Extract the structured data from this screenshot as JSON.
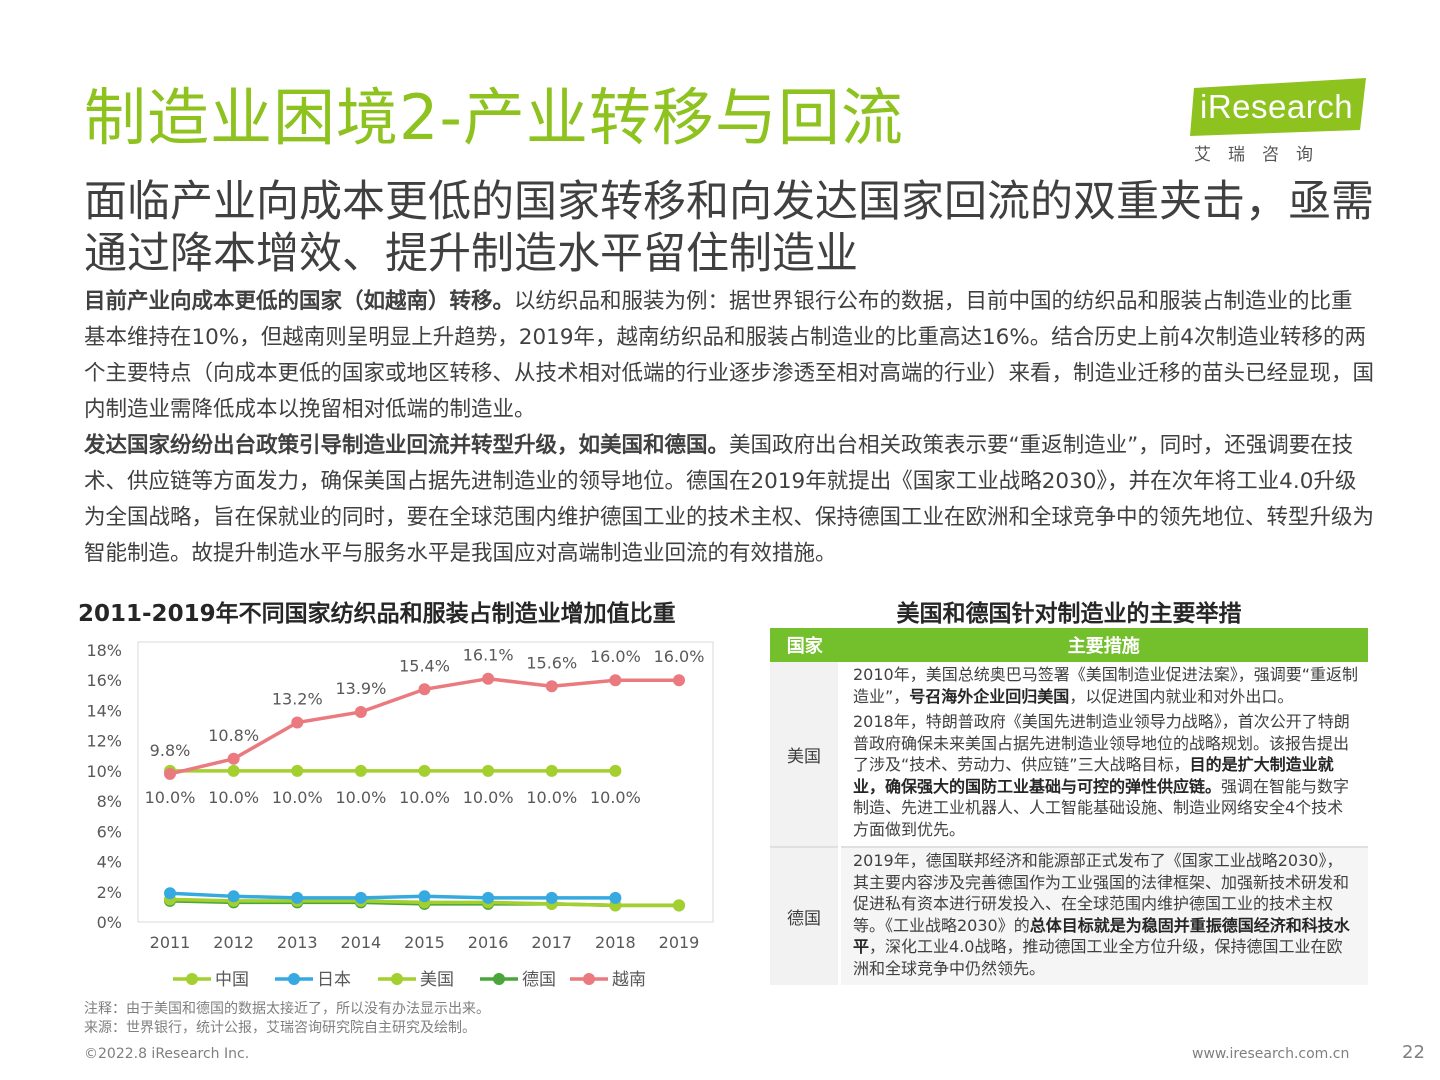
{
  "header": {
    "title": "制造业困境2-产业转移与回流",
    "logo_text": "iResearch",
    "logo_sub": "艾瑞咨询",
    "subtitle": "面临产业向成本更低的国家转移和向发达国家回流的双重夹击，亟需通过降本增效、提升制造水平留住制造业"
  },
  "body": {
    "p1_bold": "目前产业向成本更低的国家（如越南）转移。",
    "p1_text": "以纺织品和服装为例：据世界银行公布的数据，目前中国的纺织品和服装占制造业的比重基本维持在10%，但越南则呈明显上升趋势，2019年，越南纺织品和服装占制造业的比重高达16%。结合历史上前4次制造业转移的两个主要特点（向成本更低的国家或地区转移、从技术相对低端的行业逐步渗透至相对高端的行业）来看，制造业迁移的苗头已经显现，国内制造业需降低成本以挽留相对低端的制造业。",
    "p2_bold": "发达国家纷纷出台政策引导制造业回流并转型升级，如美国和德国。",
    "p2_text": "美国政府出台相关政策表示要“重返制造业”，同时，还强调要在技术、供应链等方面发力，确保美国占据先进制造业的领导地位。德国在2019年就提出《国家工业战略2030》，并在次年将工业4.0升级为全国战略，旨在保就业的同时，要在全球范围内维护德国工业的技术主权、保持德国工业在欧洲和全球竞争中的领先地位、转型升级为智能制造。故提升制造水平与服务水平是我国应对高端制造业回流的有效措施。"
  },
  "chart_data": {
    "type": "line",
    "title": "2011-2019年不同国家纺织品和服装占制造业增加值比重",
    "x": [
      "2011",
      "2012",
      "2013",
      "2014",
      "2015",
      "2016",
      "2017",
      "2018",
      "2019"
    ],
    "y_ticks": [
      "0%",
      "2%",
      "4%",
      "6%",
      "8%",
      "10%",
      "12%",
      "14%",
      "16%",
      "18%"
    ],
    "ylim": [
      0,
      18
    ],
    "series": [
      {
        "name": "中国",
        "color": "#a3cf2f",
        "values": [
          10.0,
          10.0,
          10.0,
          10.0,
          10.0,
          10.0,
          10.0,
          10.0,
          null
        ],
        "labels": [
          "10.0%",
          "10.0%",
          "10.0%",
          "10.0%",
          "10.0%",
          "10.0%",
          "10.0%",
          "10.0%",
          null
        ],
        "label_pos": "below"
      },
      {
        "name": "日本",
        "color": "#35a9e0",
        "values": [
          1.9,
          1.7,
          1.6,
          1.6,
          1.7,
          1.6,
          1.6,
          1.6,
          null
        ]
      },
      {
        "name": "美国",
        "color": "#a3cf2f",
        "values": [
          1.5,
          1.4,
          1.4,
          1.4,
          1.3,
          1.3,
          1.2,
          1.1,
          1.1
        ]
      },
      {
        "name": "德国",
        "color": "#4aa53a",
        "values": [
          1.4,
          1.3,
          1.3,
          1.3,
          1.2,
          1.2,
          1.2,
          1.1,
          1.1
        ]
      },
      {
        "name": "越南",
        "color": "#ea7a7f",
        "values": [
          9.8,
          10.8,
          13.2,
          13.9,
          15.4,
          16.1,
          15.6,
          16.0,
          16.0
        ],
        "labels": [
          "9.8%",
          "10.8%",
          "13.2%",
          "13.9%",
          "15.4%",
          "16.1%",
          "15.6%",
          "16.0%",
          "16.0%"
        ],
        "label_pos": "above"
      }
    ],
    "legend": [
      "中国",
      "日本",
      "美国",
      "德国",
      "越南"
    ],
    "legend_position": "bottom"
  },
  "notes": {
    "note": "注释：由于美国和德国的数据太接近了，所以没有办法显示出来。",
    "source": "来源：世界银行，统计公报，艾瑞咨询研究院自主研究及绘制。"
  },
  "table": {
    "title": "美国和德国针对制造业的主要举措",
    "col_country": "国家",
    "col_measure": "主要措施",
    "us": {
      "country": "美国",
      "m1_a": "2010年，美国总统奥巴马签署《美国制造业促进法案》，强调要“重返制造业”，",
      "m1_b": "号召海外企业回归美国",
      "m1_c": "，以促进国内就业和对外出口。",
      "m2_a": "2018年，特朗普政府《美国先进制造业领导力战略》，首次公开了特朗普政府确保未来美国占据先进制造业领导地位的战略规划。该报告提出了涉及“技术、劳动力、供应链”三大战略目标，",
      "m2_b": "目的是扩大制造业就业，确保强大的国防工业基础与可控的弹性供应链。",
      "m2_c": "强调在智能与数字制造、先进工业机器人、人工智能基础设施、制造业网络安全4个技术方面做到优先。"
    },
    "de": {
      "country": "德国",
      "m_a": "2019年，德国联邦经济和能源部正式发布了《国家工业战略2030》，其主要内容涉及完善德国作为工业强国的法律框架、加强新技术研发和促进私有资本进行研发投入、在全球范围内维护德国工业的技术主权等。《工业战略2030》的",
      "m_b": "总体目标就是为稳固并重振德国经济和科技水平",
      "m_c": "，深化工业4.0战略，推动德国工业全方位升级，保持德国工业在欧洲和全球竞争中仍然领先。"
    }
  },
  "footer": {
    "copyright": "©2022.8 iResearch Inc.",
    "url": "www.iresearch.com.cn",
    "page": "22"
  }
}
